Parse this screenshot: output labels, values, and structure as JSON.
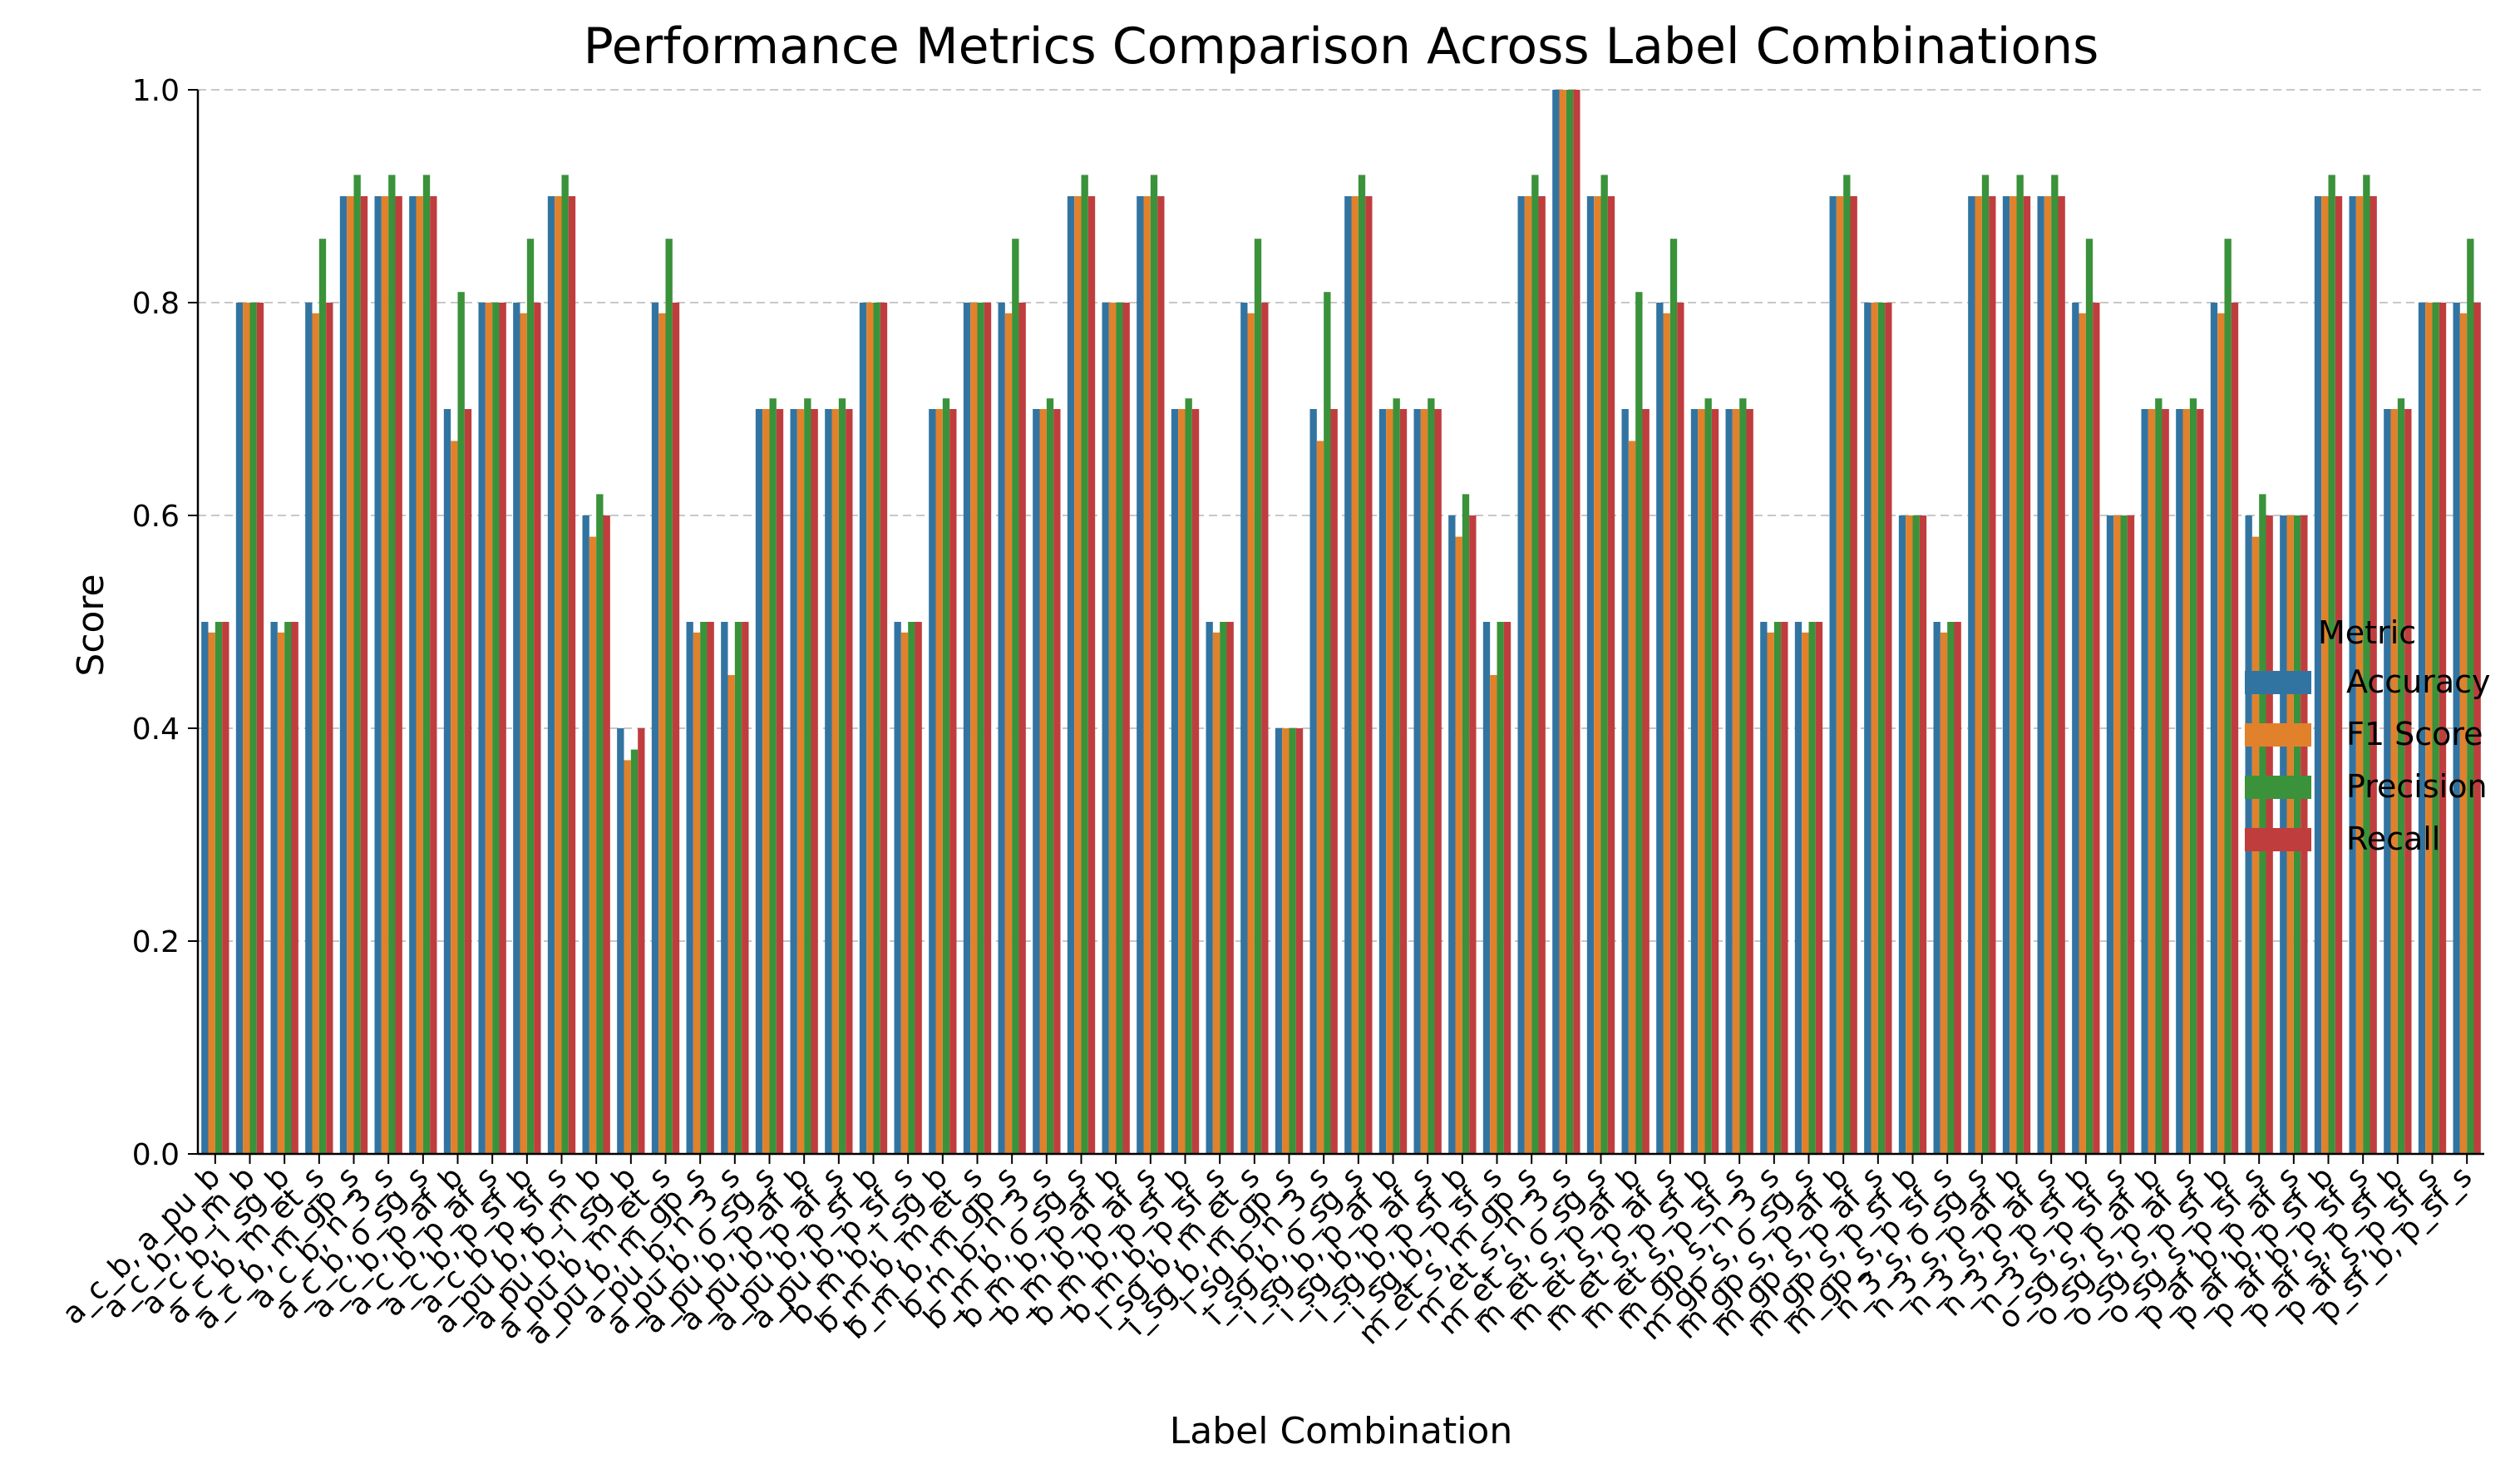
{
  "chart_data": {
    "type": "bar",
    "title": "Performance Metrics Comparison Across Label Combinations",
    "xlabel": "Label Combination",
    "ylabel": "Score",
    "ylim": [
      0,
      1.0
    ],
    "yticks": [
      0.0,
      0.2,
      0.4,
      0.6,
      0.8,
      1.0
    ],
    "ytick_labels": [
      "0.0",
      "0.2",
      "0.4",
      "0.6",
      "0.8",
      "1.0"
    ],
    "grid": "y-dashed",
    "legend_title": "Metric",
    "legend_position": "right",
    "categories": [
      "a_c_b, a_pu_b",
      "a_c_b, b_m_b",
      "a_c_b, i_sg_b",
      "a_c_b, m_et_s",
      "a_c_b, m_gp_s",
      "a_c_b, n_3_s",
      "a_c_b, o_sg_s",
      "a_c_b, p_af_b",
      "a_c_b, p_af_s",
      "a_c_b, p_sf_b",
      "a_c_b, p_sf_s",
      "a_pu_b, b_m_b",
      "a_pu_b, i_sg_b",
      "a_pu_b, m_et_s",
      "a_pu_b, m_gp_s",
      "a_pu_b, n_3_s",
      "a_pu_b, o_sg_s",
      "a_pu_b, p_af_b",
      "a_pu_b, p_af_s",
      "a_pu_b, p_sf_b",
      "a_pu_b, p_sf_s",
      "b_m_b, i_sg_b",
      "b_m_b, m_et_s",
      "b_m_b, m_gp_s",
      "b_m_b, n_3_s",
      "b_m_b, o_sg_s",
      "b_m_b, p_af_b",
      "b_m_b, p_af_s",
      "b_m_b, p_sf_b",
      "b_m_b, p_sf_s",
      "i_sg_b, m_et_s",
      "i_sg_b, m_gp_s",
      "i_sg_b, n_3_s",
      "i_sg_b, o_sg_s",
      "i_sg_b, p_af_b",
      "i_sg_b, p_af_s",
      "i_sg_b, p_sf_b",
      "i_sg_b, p_sf_s",
      "m_et_s, m_gp_s",
      "m_et_s, n_3_s",
      "m_et_s, o_sg_s",
      "m_et_s, p_af_b",
      "m_et_s, p_af_s",
      "m_et_s, p_sf_b",
      "m_et_s, p_sf_s",
      "m_gp_s, n_3_s",
      "m_gp_s, o_sg_s",
      "m_gp_s, p_af_b",
      "m_gp_s, p_af_s",
      "m_gp_s, p_sf_b",
      "m_gp_s, p_sf_s",
      "n_3_s, o_sg_s",
      "n_3_s, p_af_b",
      "n_3_s, p_af_s",
      "n_3_s, p_sf_b",
      "n_3_s, p_sf_s",
      "o_sg_s, p_af_b",
      "o_sg_s, p_af_s",
      "o_sg_s, p_sf_b",
      "o_sg_s, p_sf_s",
      "p_af_b, p_af_s",
      "p_af_b, p_sf_b",
      "p_af_b, p_sf_s",
      "p_af_s, p_sf_b",
      "p_af_s, p_sf_s",
      "p_sf_b, p_sf_s"
    ],
    "series": [
      {
        "name": "Accuracy",
        "color": "#3274a1",
        "values": [
          0.5,
          0.8,
          0.5,
          0.8,
          0.9,
          0.9,
          0.9,
          0.7,
          0.8,
          0.8,
          0.9,
          0.6,
          0.4,
          0.8,
          0.5,
          0.5,
          0.7,
          0.7,
          0.7,
          0.8,
          0.5,
          0.7,
          0.8,
          0.8,
          0.7,
          0.9,
          0.8,
          0.9,
          0.7,
          0.5,
          0.8,
          0.4,
          0.7,
          0.9,
          0.7,
          0.7,
          0.6,
          0.5,
          0.9,
          1.0,
          0.9,
          0.7,
          0.8,
          0.7,
          0.7,
          0.5,
          0.5,
          0.9,
          0.8,
          0.6,
          0.5,
          0.9,
          0.9,
          0.9,
          0.8,
          0.6,
          0.7,
          0.7,
          0.8,
          0.6,
          0.6,
          0.9,
          0.9,
          0.7,
          0.8,
          0.8
        ]
      },
      {
        "name": "F1 Score",
        "color": "#e1812c",
        "values": [
          0.49,
          0.8,
          0.49,
          0.79,
          0.9,
          0.9,
          0.9,
          0.67,
          0.8,
          0.79,
          0.9,
          0.58,
          0.37,
          0.79,
          0.49,
          0.45,
          0.7,
          0.7,
          0.7,
          0.8,
          0.49,
          0.7,
          0.8,
          0.79,
          0.7,
          0.9,
          0.8,
          0.9,
          0.7,
          0.49,
          0.79,
          0.4,
          0.67,
          0.9,
          0.7,
          0.7,
          0.58,
          0.45,
          0.9,
          1.0,
          0.9,
          0.67,
          0.79,
          0.7,
          0.7,
          0.49,
          0.49,
          0.9,
          0.8,
          0.6,
          0.49,
          0.9,
          0.9,
          0.9,
          0.79,
          0.6,
          0.7,
          0.7,
          0.79,
          0.58,
          0.6,
          0.9,
          0.9,
          0.7,
          0.8,
          0.79
        ]
      },
      {
        "name": "Precision",
        "color": "#3a923a",
        "values": [
          0.5,
          0.8,
          0.5,
          0.86,
          0.92,
          0.92,
          0.92,
          0.81,
          0.8,
          0.86,
          0.92,
          0.62,
          0.38,
          0.86,
          0.5,
          0.5,
          0.71,
          0.71,
          0.71,
          0.8,
          0.5,
          0.71,
          0.8,
          0.86,
          0.71,
          0.92,
          0.8,
          0.92,
          0.71,
          0.5,
          0.86,
          0.4,
          0.81,
          0.92,
          0.71,
          0.71,
          0.62,
          0.5,
          0.92,
          1.0,
          0.92,
          0.81,
          0.86,
          0.71,
          0.71,
          0.5,
          0.5,
          0.92,
          0.8,
          0.6,
          0.5,
          0.92,
          0.92,
          0.92,
          0.86,
          0.6,
          0.71,
          0.71,
          0.86,
          0.62,
          0.6,
          0.92,
          0.92,
          0.71,
          0.8,
          0.86
        ]
      },
      {
        "name": "Recall",
        "color": "#c03d3e",
        "values": [
          0.5,
          0.8,
          0.5,
          0.8,
          0.9,
          0.9,
          0.9,
          0.7,
          0.8,
          0.8,
          0.9,
          0.6,
          0.4,
          0.8,
          0.5,
          0.5,
          0.7,
          0.7,
          0.7,
          0.8,
          0.5,
          0.7,
          0.8,
          0.8,
          0.7,
          0.9,
          0.8,
          0.9,
          0.7,
          0.5,
          0.8,
          0.4,
          0.7,
          0.9,
          0.7,
          0.7,
          0.6,
          0.5,
          0.9,
          1.0,
          0.9,
          0.7,
          0.8,
          0.7,
          0.7,
          0.5,
          0.5,
          0.9,
          0.8,
          0.6,
          0.5,
          0.9,
          0.9,
          0.9,
          0.8,
          0.6,
          0.7,
          0.7,
          0.8,
          0.6,
          0.6,
          0.9,
          0.9,
          0.7,
          0.8,
          0.8
        ]
      }
    ]
  }
}
